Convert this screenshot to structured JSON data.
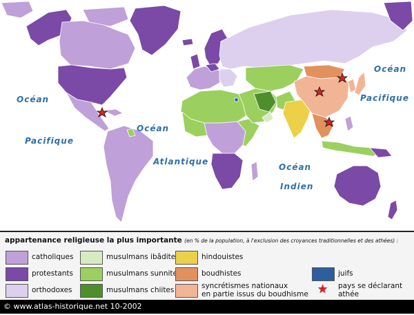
{
  "map": {
    "oceans": [
      {
        "id": "ocean-pacific-west",
        "line1": "Océan",
        "line2": "Pacifique"
      },
      {
        "id": "ocean-atlantic",
        "line1": "Océan",
        "line2": "Atlantique"
      },
      {
        "id": "ocean-indian",
        "line1": "Océan",
        "line2": "Indien"
      },
      {
        "id": "ocean-pacific-east",
        "line1": "Océan",
        "line2": "Pacifique"
      }
    ],
    "atheist_country_markers": [
      "China",
      "North Korea",
      "Vietnam",
      "Cuba"
    ]
  },
  "legend": {
    "title": "appartenance religieuse la plus importante",
    "subtitle": "(en % de la population, à l'exclusion des croyances traditionnelles et des athées) :",
    "colors": {
      "catholiques": "#bfa0d8",
      "protestants": "#7a4aa6",
      "orthodoxes": "#ddd0ee",
      "ibadites": "#d6ecc0",
      "sunnites": "#9bd05e",
      "chiites": "#4f8e2c",
      "hindouistes": "#ecd048",
      "boudhistes": "#e3905f",
      "syncretismes": "#f1b596",
      "juifs": "#2f5e9e",
      "star": "#e02020"
    },
    "items": {
      "catholiques": "catholiques",
      "protestants": "protestants",
      "orthodoxes": "orthodoxes",
      "ibadites": "musulmans ibâdites",
      "sunnites": "musulmans sunnites",
      "chiites": "musulmans chiites",
      "hindouistes": "hindouistes",
      "boudhistes": "boudhistes",
      "syncretismes_line1": "syncrétismes nationaux",
      "syncretismes_line2": "en partie issus du boudhisme",
      "juifs": "juifs",
      "athees_line1": "pays se déclarant",
      "athees_line2": "athée"
    }
  },
  "footer": {
    "credit": "© www.atlas-historique.net 10-2002"
  }
}
